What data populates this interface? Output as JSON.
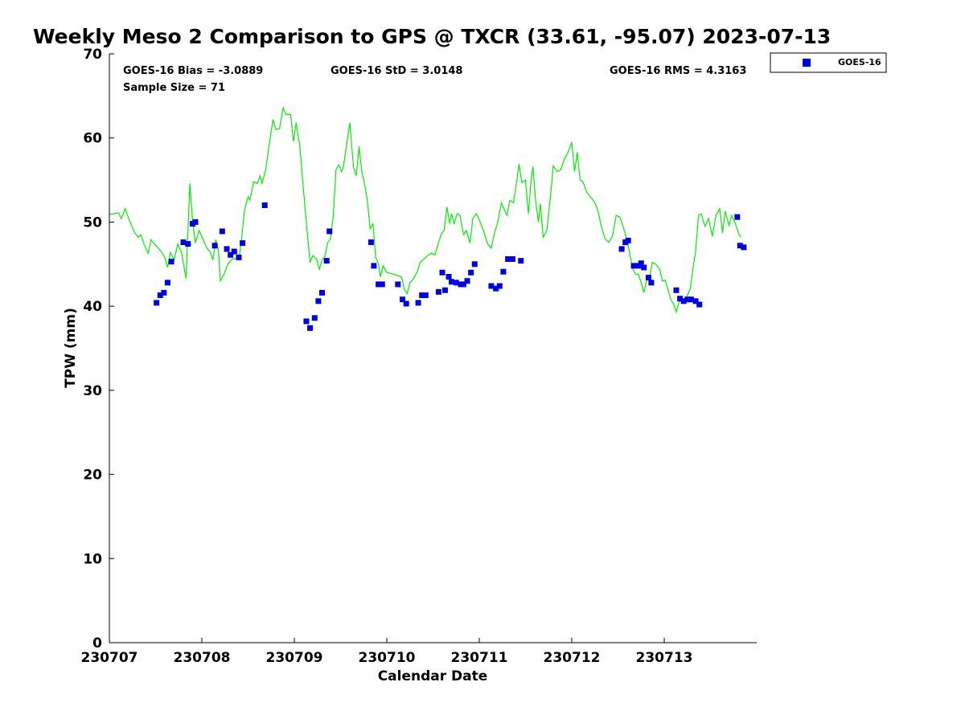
{
  "title": "Weekly Meso 2 Comparison to GPS @ TXCR (33.61, -95.07) 2023-07-13",
  "stats": {
    "bias": "GOES-16 Bias = -3.0889",
    "sample_size": "Sample Size = 71",
    "std": "GOES-16 StD = 3.0148",
    "rms": "GOES-16 RMS = 4.3163"
  },
  "legend": {
    "label": "GOES-16"
  },
  "colors": {
    "gps_line": "#00ee00",
    "goes_marker": "#0000dd",
    "axes": "#000000"
  },
  "chart_data": {
    "type": "line",
    "title": "Weekly Meso 2 Comparison to GPS @ TXCR (33.61, -95.07) 2023-07-13",
    "xlabel": "Calendar Date",
    "ylabel": "TPW (mm)",
    "x_unit": "days from 230707",
    "xlim": [
      0,
      7
    ],
    "ylim": [
      0,
      70
    ],
    "x_ticks": [
      0,
      1,
      2,
      3,
      4,
      5,
      6
    ],
    "x_tick_labels": [
      "230707",
      "230708",
      "230709",
      "230710",
      "230711",
      "230712",
      "230713"
    ],
    "y_ticks": [
      0,
      10,
      20,
      30,
      40,
      50,
      60,
      70
    ],
    "y_tick_labels": [
      "0",
      "10",
      "20",
      "30",
      "40",
      "50",
      "60",
      "70"
    ],
    "legend_position": "top-right, outside plot",
    "grid": false,
    "series": [
      {
        "kind": "line",
        "color": "#00ee00",
        "points": [
          [
            0.0,
            50.9
          ],
          [
            0.1,
            51.1
          ],
          [
            0.13,
            50.4
          ],
          [
            0.17,
            51.6
          ],
          [
            0.22,
            50.1
          ],
          [
            0.27,
            48.8
          ],
          [
            0.31,
            48.2
          ],
          [
            0.34,
            48.5
          ],
          [
            0.38,
            47.2
          ],
          [
            0.42,
            46.3
          ],
          [
            0.45,
            47.9
          ],
          [
            0.48,
            47.5
          ],
          [
            0.52,
            47.0
          ],
          [
            0.56,
            46.5
          ],
          [
            0.6,
            45.8
          ],
          [
            0.63,
            44.6
          ],
          [
            0.66,
            46.4
          ],
          [
            0.7,
            45.5
          ],
          [
            0.74,
            47.4
          ],
          [
            0.78,
            46.4
          ],
          [
            0.83,
            43.3
          ],
          [
            0.87,
            54.6
          ],
          [
            0.9,
            50.1
          ],
          [
            0.93,
            47.5
          ],
          [
            0.97,
            49.0
          ],
          [
            1.01,
            48.0
          ],
          [
            1.05,
            47.0
          ],
          [
            1.09,
            46.4
          ],
          [
            1.12,
            45.5
          ],
          [
            1.15,
            47.9
          ],
          [
            1.18,
            46.6
          ],
          [
            1.2,
            43.0
          ],
          [
            1.24,
            43.8
          ],
          [
            1.28,
            45.0
          ],
          [
            1.33,
            45.6
          ],
          [
            1.37,
            45.7
          ],
          [
            1.4,
            45.5
          ],
          [
            1.43,
            48.0
          ],
          [
            1.46,
            51.3
          ],
          [
            1.5,
            53.0
          ],
          [
            1.52,
            52.6
          ],
          [
            1.56,
            54.8
          ],
          [
            1.6,
            54.6
          ],
          [
            1.63,
            55.5
          ],
          [
            1.65,
            54.6
          ],
          [
            1.69,
            56.2
          ],
          [
            1.73,
            59.3
          ],
          [
            1.77,
            62.2
          ],
          [
            1.8,
            61.0
          ],
          [
            1.84,
            61.1
          ],
          [
            1.88,
            63.6
          ],
          [
            1.91,
            62.8
          ],
          [
            1.96,
            62.8
          ],
          [
            1.99,
            59.6
          ],
          [
            2.02,
            61.8
          ],
          [
            2.06,
            59.0
          ],
          [
            2.09,
            55.0
          ],
          [
            2.13,
            50.0
          ],
          [
            2.17,
            45.2
          ],
          [
            2.2,
            46.0
          ],
          [
            2.24,
            45.6
          ],
          [
            2.27,
            44.4
          ],
          [
            2.3,
            45.5
          ],
          [
            2.33,
            45.9
          ],
          [
            2.36,
            47.5
          ],
          [
            2.39,
            48.0
          ],
          [
            2.42,
            50.5
          ],
          [
            2.45,
            56.2
          ],
          [
            2.48,
            56.8
          ],
          [
            2.51,
            56.0
          ],
          [
            2.53,
            56.5
          ],
          [
            2.57,
            59.5
          ],
          [
            2.6,
            61.8
          ],
          [
            2.64,
            56.5
          ],
          [
            2.67,
            55.5
          ],
          [
            2.7,
            59.0
          ],
          [
            2.73,
            56.0
          ],
          [
            2.76,
            54.5
          ],
          [
            2.79,
            52.5
          ],
          [
            2.82,
            49.2
          ],
          [
            2.85,
            49.8
          ],
          [
            2.88,
            45.8
          ],
          [
            2.91,
            45.0
          ],
          [
            2.93,
            43.5
          ],
          [
            2.96,
            44.8
          ],
          [
            3.0,
            44.0
          ],
          [
            3.04,
            43.9
          ],
          [
            3.08,
            43.8
          ],
          [
            3.12,
            43.6
          ],
          [
            3.16,
            43.5
          ],
          [
            3.19,
            42.0
          ],
          [
            3.22,
            41.5
          ],
          [
            3.25,
            42.8
          ],
          [
            3.29,
            43.3
          ],
          [
            3.33,
            44.1
          ],
          [
            3.36,
            45.2
          ],
          [
            3.4,
            45.6
          ],
          [
            3.44,
            46.0
          ],
          [
            3.48,
            46.3
          ],
          [
            3.52,
            46.1
          ],
          [
            3.55,
            47.2
          ],
          [
            3.59,
            48.6
          ],
          [
            3.62,
            49.0
          ],
          [
            3.65,
            51.8
          ],
          [
            3.68,
            49.8
          ],
          [
            3.7,
            51.0
          ],
          [
            3.73,
            49.8
          ],
          [
            3.76,
            51.0
          ],
          [
            3.79,
            50.8
          ],
          [
            3.83,
            48.5
          ],
          [
            3.86,
            49.0
          ],
          [
            3.9,
            47.5
          ],
          [
            3.93,
            50.5
          ],
          [
            3.97,
            51.0
          ],
          [
            4.01,
            50.0
          ],
          [
            4.05,
            48.8
          ],
          [
            4.09,
            47.4
          ],
          [
            4.13,
            46.9
          ],
          [
            4.16,
            48.5
          ],
          [
            4.2,
            50.0
          ],
          [
            4.24,
            52.3
          ],
          [
            4.27,
            51.5
          ],
          [
            4.3,
            50.8
          ],
          [
            4.33,
            52.6
          ],
          [
            4.37,
            52.3
          ],
          [
            4.4,
            54.5
          ],
          [
            4.43,
            56.9
          ],
          [
            4.46,
            54.7
          ],
          [
            4.5,
            55.0
          ],
          [
            4.53,
            51.0
          ],
          [
            4.56,
            55.0
          ],
          [
            4.58,
            56.6
          ],
          [
            4.61,
            52.5
          ],
          [
            4.64,
            50.0
          ],
          [
            4.66,
            52.2
          ],
          [
            4.69,
            48.2
          ],
          [
            4.73,
            49.0
          ],
          [
            4.77,
            53.0
          ],
          [
            4.8,
            56.7
          ],
          [
            4.84,
            56.0
          ],
          [
            4.88,
            56.2
          ],
          [
            4.92,
            57.5
          ],
          [
            4.96,
            58.3
          ],
          [
            5.0,
            59.5
          ],
          [
            5.03,
            56.0
          ],
          [
            5.06,
            58.3
          ],
          [
            5.09,
            55.0
          ],
          [
            5.12,
            54.8
          ],
          [
            5.16,
            53.6
          ],
          [
            5.2,
            53.0
          ],
          [
            5.24,
            52.5
          ],
          [
            5.28,
            51.5
          ],
          [
            5.32,
            49.5
          ],
          [
            5.36,
            48.0
          ],
          [
            5.4,
            47.6
          ],
          [
            5.44,
            48.3
          ],
          [
            5.48,
            50.8
          ],
          [
            5.52,
            50.6
          ],
          [
            5.56,
            49.3
          ],
          [
            5.6,
            47.8
          ],
          [
            5.63,
            46.1
          ],
          [
            5.66,
            44.4
          ],
          [
            5.69,
            43.8
          ],
          [
            5.72,
            43.8
          ],
          [
            5.75,
            42.8
          ],
          [
            5.78,
            41.6
          ],
          [
            5.81,
            43.1
          ],
          [
            5.84,
            43.4
          ],
          [
            5.87,
            45.2
          ],
          [
            5.91,
            45.0
          ],
          [
            5.95,
            44.4
          ],
          [
            5.98,
            43.0
          ],
          [
            6.01,
            43.1
          ],
          [
            6.04,
            42.0
          ],
          [
            6.07,
            40.8
          ],
          [
            6.1,
            40.3
          ],
          [
            6.13,
            39.3
          ],
          [
            6.16,
            40.5
          ],
          [
            6.19,
            40.7
          ],
          [
            6.22,
            40.4
          ],
          [
            6.25,
            41.3
          ],
          [
            6.28,
            42.0
          ],
          [
            6.31,
            44.4
          ],
          [
            6.34,
            46.6
          ],
          [
            6.37,
            50.8
          ],
          [
            6.4,
            51.0
          ],
          [
            6.44,
            49.5
          ],
          [
            6.48,
            50.4
          ],
          [
            6.52,
            48.3
          ],
          [
            6.56,
            50.8
          ],
          [
            6.6,
            51.6
          ],
          [
            6.63,
            48.7
          ],
          [
            6.66,
            51.3
          ],
          [
            6.7,
            49.6
          ],
          [
            6.73,
            50.8
          ],
          [
            6.77,
            49.8
          ],
          [
            6.81,
            48.5
          ],
          [
            6.83,
            48.2
          ]
        ]
      },
      {
        "name": "GOES-16",
        "kind": "scatter",
        "color": "#0000dd",
        "points": [
          [
            0.51,
            40.4
          ],
          [
            0.55,
            41.3
          ],
          [
            0.59,
            41.6
          ],
          [
            0.63,
            42.8
          ],
          [
            0.67,
            45.3
          ],
          [
            0.8,
            47.6
          ],
          [
            0.85,
            47.4
          ],
          [
            0.9,
            49.8
          ],
          [
            0.93,
            50.0
          ],
          [
            1.14,
            47.2
          ],
          [
            1.22,
            48.9
          ],
          [
            1.27,
            46.8
          ],
          [
            1.31,
            46.1
          ],
          [
            1.35,
            46.5
          ],
          [
            1.4,
            45.8
          ],
          [
            1.44,
            47.5
          ],
          [
            1.68,
            52.0
          ],
          [
            2.13,
            38.2
          ],
          [
            2.17,
            37.4
          ],
          [
            2.22,
            38.6
          ],
          [
            2.26,
            40.6
          ],
          [
            2.3,
            41.6
          ],
          [
            2.35,
            45.4
          ],
          [
            2.38,
            48.9
          ],
          [
            2.83,
            47.6
          ],
          [
            2.86,
            44.8
          ],
          [
            2.91,
            42.6
          ],
          [
            2.95,
            42.6
          ],
          [
            3.12,
            42.6
          ],
          [
            3.17,
            40.8
          ],
          [
            3.21,
            40.3
          ],
          [
            3.34,
            40.4
          ],
          [
            3.38,
            41.3
          ],
          [
            3.42,
            41.3
          ],
          [
            3.56,
            41.7
          ],
          [
            3.6,
            44.0
          ],
          [
            3.63,
            41.9
          ],
          [
            3.67,
            43.5
          ],
          [
            3.7,
            42.9
          ],
          [
            3.75,
            42.8
          ],
          [
            3.8,
            42.6
          ],
          [
            3.83,
            42.6
          ],
          [
            3.87,
            43.0
          ],
          [
            3.91,
            44.0
          ],
          [
            3.95,
            45.0
          ],
          [
            4.13,
            42.4
          ],
          [
            4.18,
            42.1
          ],
          [
            4.22,
            42.4
          ],
          [
            4.26,
            44.1
          ],
          [
            4.31,
            45.6
          ],
          [
            4.36,
            45.6
          ],
          [
            4.45,
            45.4
          ],
          [
            5.54,
            46.8
          ],
          [
            5.58,
            47.6
          ],
          [
            5.61,
            47.8
          ],
          [
            5.67,
            44.8
          ],
          [
            5.72,
            44.8
          ],
          [
            5.75,
            45.1
          ],
          [
            5.78,
            44.6
          ],
          [
            5.83,
            43.4
          ],
          [
            5.86,
            42.8
          ],
          [
            6.13,
            41.9
          ],
          [
            6.17,
            40.9
          ],
          [
            6.21,
            40.6
          ],
          [
            6.25,
            40.8
          ],
          [
            6.29,
            40.8
          ],
          [
            6.34,
            40.6
          ],
          [
            6.38,
            40.2
          ],
          [
            6.79,
            50.6
          ],
          [
            6.82,
            47.2
          ],
          [
            6.86,
            47.0
          ]
        ]
      }
    ]
  }
}
